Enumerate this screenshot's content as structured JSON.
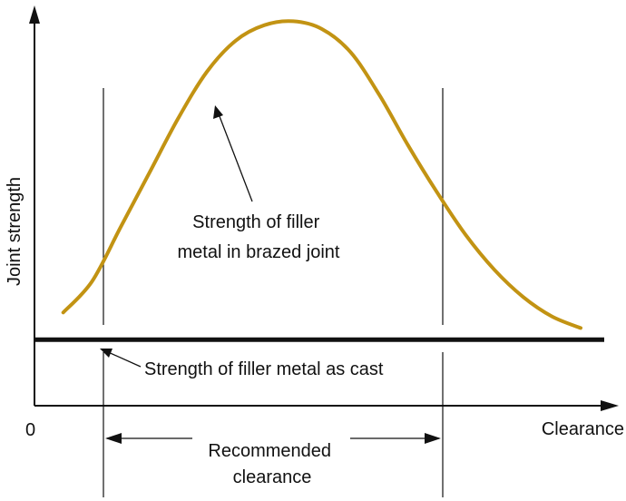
{
  "chart_data": {
    "type": "line",
    "xlabel": "Clearance",
    "ylabel": "Joint strength",
    "origin_label": "0",
    "series": [
      {
        "name": "Strength of filler metal in brazed joint",
        "label_lines": [
          "Strength of filler",
          "metal in brazed joint"
        ],
        "color": "#c29313",
        "x": [
          0.05,
          0.1,
          0.15,
          0.2,
          0.25,
          0.3,
          0.35,
          0.4,
          0.45,
          0.5,
          0.55,
          0.6,
          0.65,
          0.7,
          0.75,
          0.8,
          0.85,
          0.9,
          0.95
        ],
        "values": [
          0.07,
          0.15,
          0.29,
          0.43,
          0.57,
          0.69,
          0.77,
          0.81,
          0.82,
          0.8,
          0.74,
          0.63,
          0.5,
          0.38,
          0.27,
          0.18,
          0.11,
          0.06,
          0.03
        ]
      },
      {
        "name": "Strength of filler metal as cast",
        "color": "#111111",
        "x": [
          0,
          1
        ],
        "values": [
          0,
          0
        ]
      }
    ],
    "recommended_clearance": {
      "label_lines": [
        "Recommended",
        "clearance"
      ],
      "range": [
        0.12,
        0.72
      ]
    },
    "xlim": [
      0,
      1.01
    ],
    "ylim": [
      -0.17,
      0.87
    ],
    "grid": false
  }
}
